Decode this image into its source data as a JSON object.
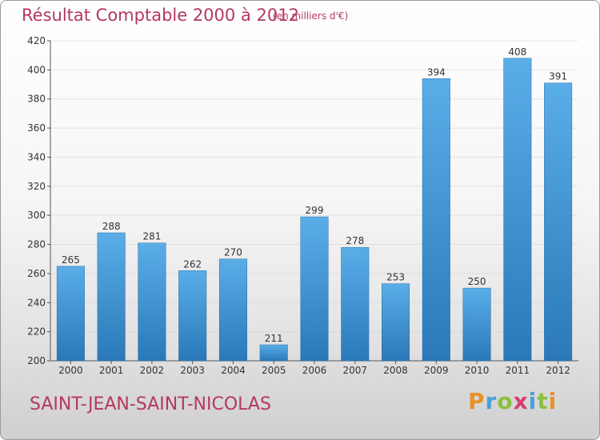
{
  "header": {
    "title": "Résultat Comptable 2000 à 2012",
    "unit": "(en milliers d'€)"
  },
  "footer": {
    "commune": "SAINT-JEAN-SAINT-NICOLAS",
    "logo_text": "Proxiti",
    "logo_colors": [
      "#e8912a",
      "#4a9fd8",
      "#8cbf3f",
      "#d63f6f",
      "#4a9fd8",
      "#8cbf3f",
      "#e8912a"
    ]
  },
  "colors": {
    "bar_top": "#5aaee8",
    "bar_bottom": "#2a78b8",
    "grid": "#cccccc",
    "accent": "#b5385d"
  },
  "chart_data": {
    "type": "bar",
    "title": "Résultat Comptable 2000 à 2012",
    "xlabel": "",
    "ylabel": "",
    "categories": [
      "2000",
      "2001",
      "2002",
      "2003",
      "2004",
      "2005",
      "2006",
      "2007",
      "2008",
      "2009",
      "2010",
      "2011",
      "2012"
    ],
    "values": [
      265,
      288,
      281,
      262,
      270,
      211,
      299,
      278,
      253,
      394,
      250,
      408,
      391
    ],
    "ylim": [
      200,
      420
    ],
    "yticks": [
      200,
      220,
      240,
      260,
      280,
      300,
      320,
      340,
      360,
      380,
      400,
      420
    ],
    "grid": true,
    "data_labels": true
  }
}
